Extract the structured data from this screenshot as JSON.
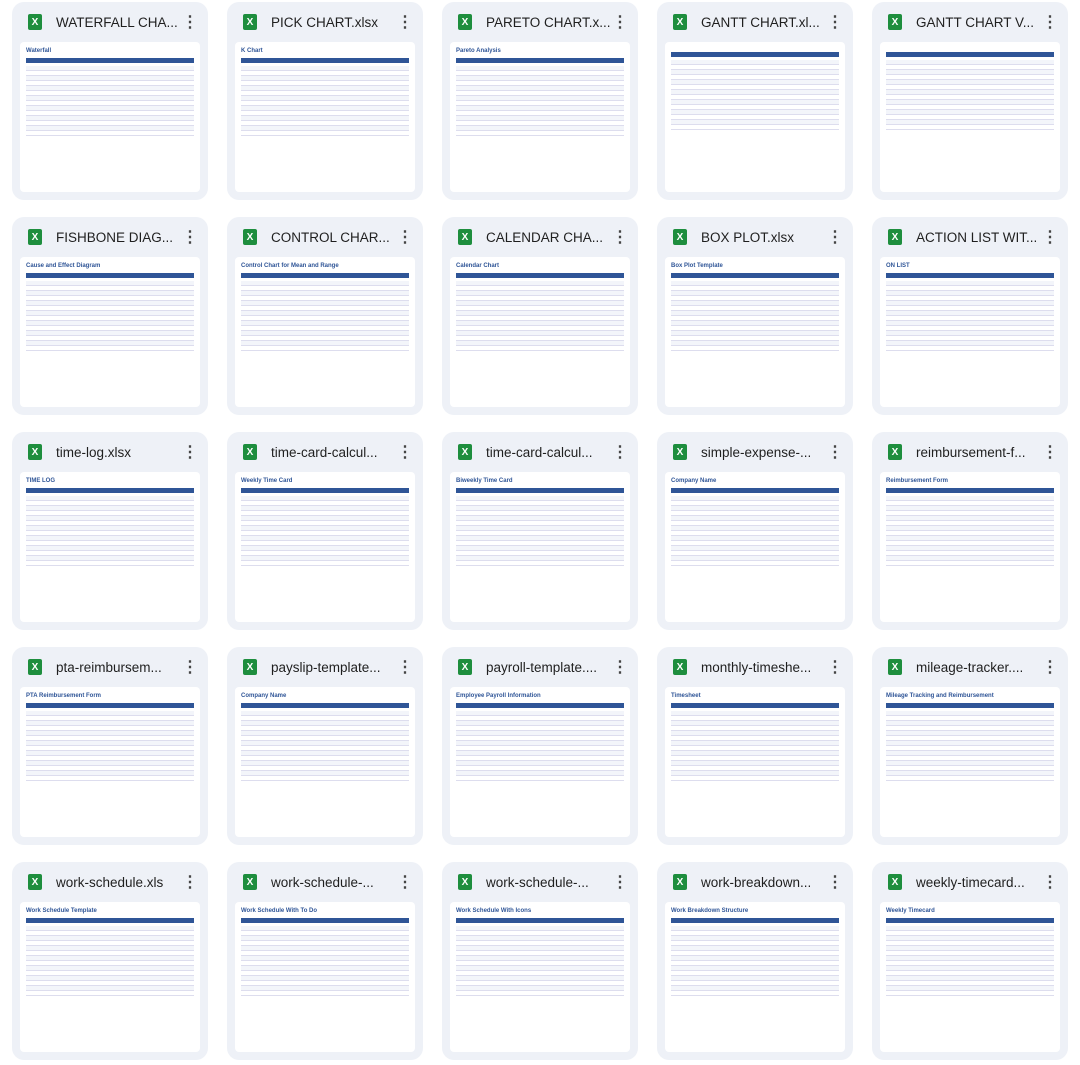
{
  "colors": {
    "card_bg": "#eef1f7",
    "excel_green": "#1e8e3e",
    "header_blue": "#2f5597"
  },
  "icons": {
    "file_type": "excel-icon",
    "menu": "more-vert-icon"
  },
  "files": [
    {
      "name": "WATERFALL CHA...",
      "thumb_title": "Waterfall"
    },
    {
      "name": "PICK CHART.xlsx",
      "thumb_title": "K Chart"
    },
    {
      "name": "PARETO CHART.x...",
      "thumb_title": "Pareto Analysis"
    },
    {
      "name": "GANTT CHART.xl...",
      "thumb_title": ""
    },
    {
      "name": "GANTT CHART V...",
      "thumb_title": ""
    },
    {
      "name": "FISHBONE DIAG...",
      "thumb_title": "Cause and Effect Diagram"
    },
    {
      "name": "CONTROL CHAR...",
      "thumb_title": "Control Chart for Mean and Range"
    },
    {
      "name": "CALENDAR CHA...",
      "thumb_title": "Calendar Chart"
    },
    {
      "name": "BOX PLOT.xlsx",
      "thumb_title": "Box Plot Template"
    },
    {
      "name": "ACTION LIST WIT...",
      "thumb_title": "ON LIST"
    },
    {
      "name": "time-log.xlsx",
      "thumb_title": "TIME LOG"
    },
    {
      "name": "time-card-calcul...",
      "thumb_title": "Weekly Time Card"
    },
    {
      "name": "time-card-calcul...",
      "thumb_title": "Biweekly Time Card"
    },
    {
      "name": "simple-expense-...",
      "thumb_title": "Company Name"
    },
    {
      "name": "reimbursement-f...",
      "thumb_title": "Reimbursement Form"
    },
    {
      "name": "pta-reimbursem...",
      "thumb_title": "PTA Reimbursement Form"
    },
    {
      "name": "payslip-template...",
      "thumb_title": "Company Name"
    },
    {
      "name": "payroll-template....",
      "thumb_title": "Employee Payroll Information"
    },
    {
      "name": "monthly-timeshe...",
      "thumb_title": "Timesheet"
    },
    {
      "name": "mileage-tracker....",
      "thumb_title": "Mileage Tracking and Reimbursement"
    },
    {
      "name": "work-schedule.xls",
      "thumb_title": "Work Schedule Template"
    },
    {
      "name": "work-schedule-...",
      "thumb_title": "Work Schedule With To Do"
    },
    {
      "name": "work-schedule-...",
      "thumb_title": "Work Schedule With Icons"
    },
    {
      "name": "work-breakdown...",
      "thumb_title": "Work Breakdown Structure"
    },
    {
      "name": "weekly-timecard...",
      "thumb_title": "Weekly Timecard"
    }
  ]
}
